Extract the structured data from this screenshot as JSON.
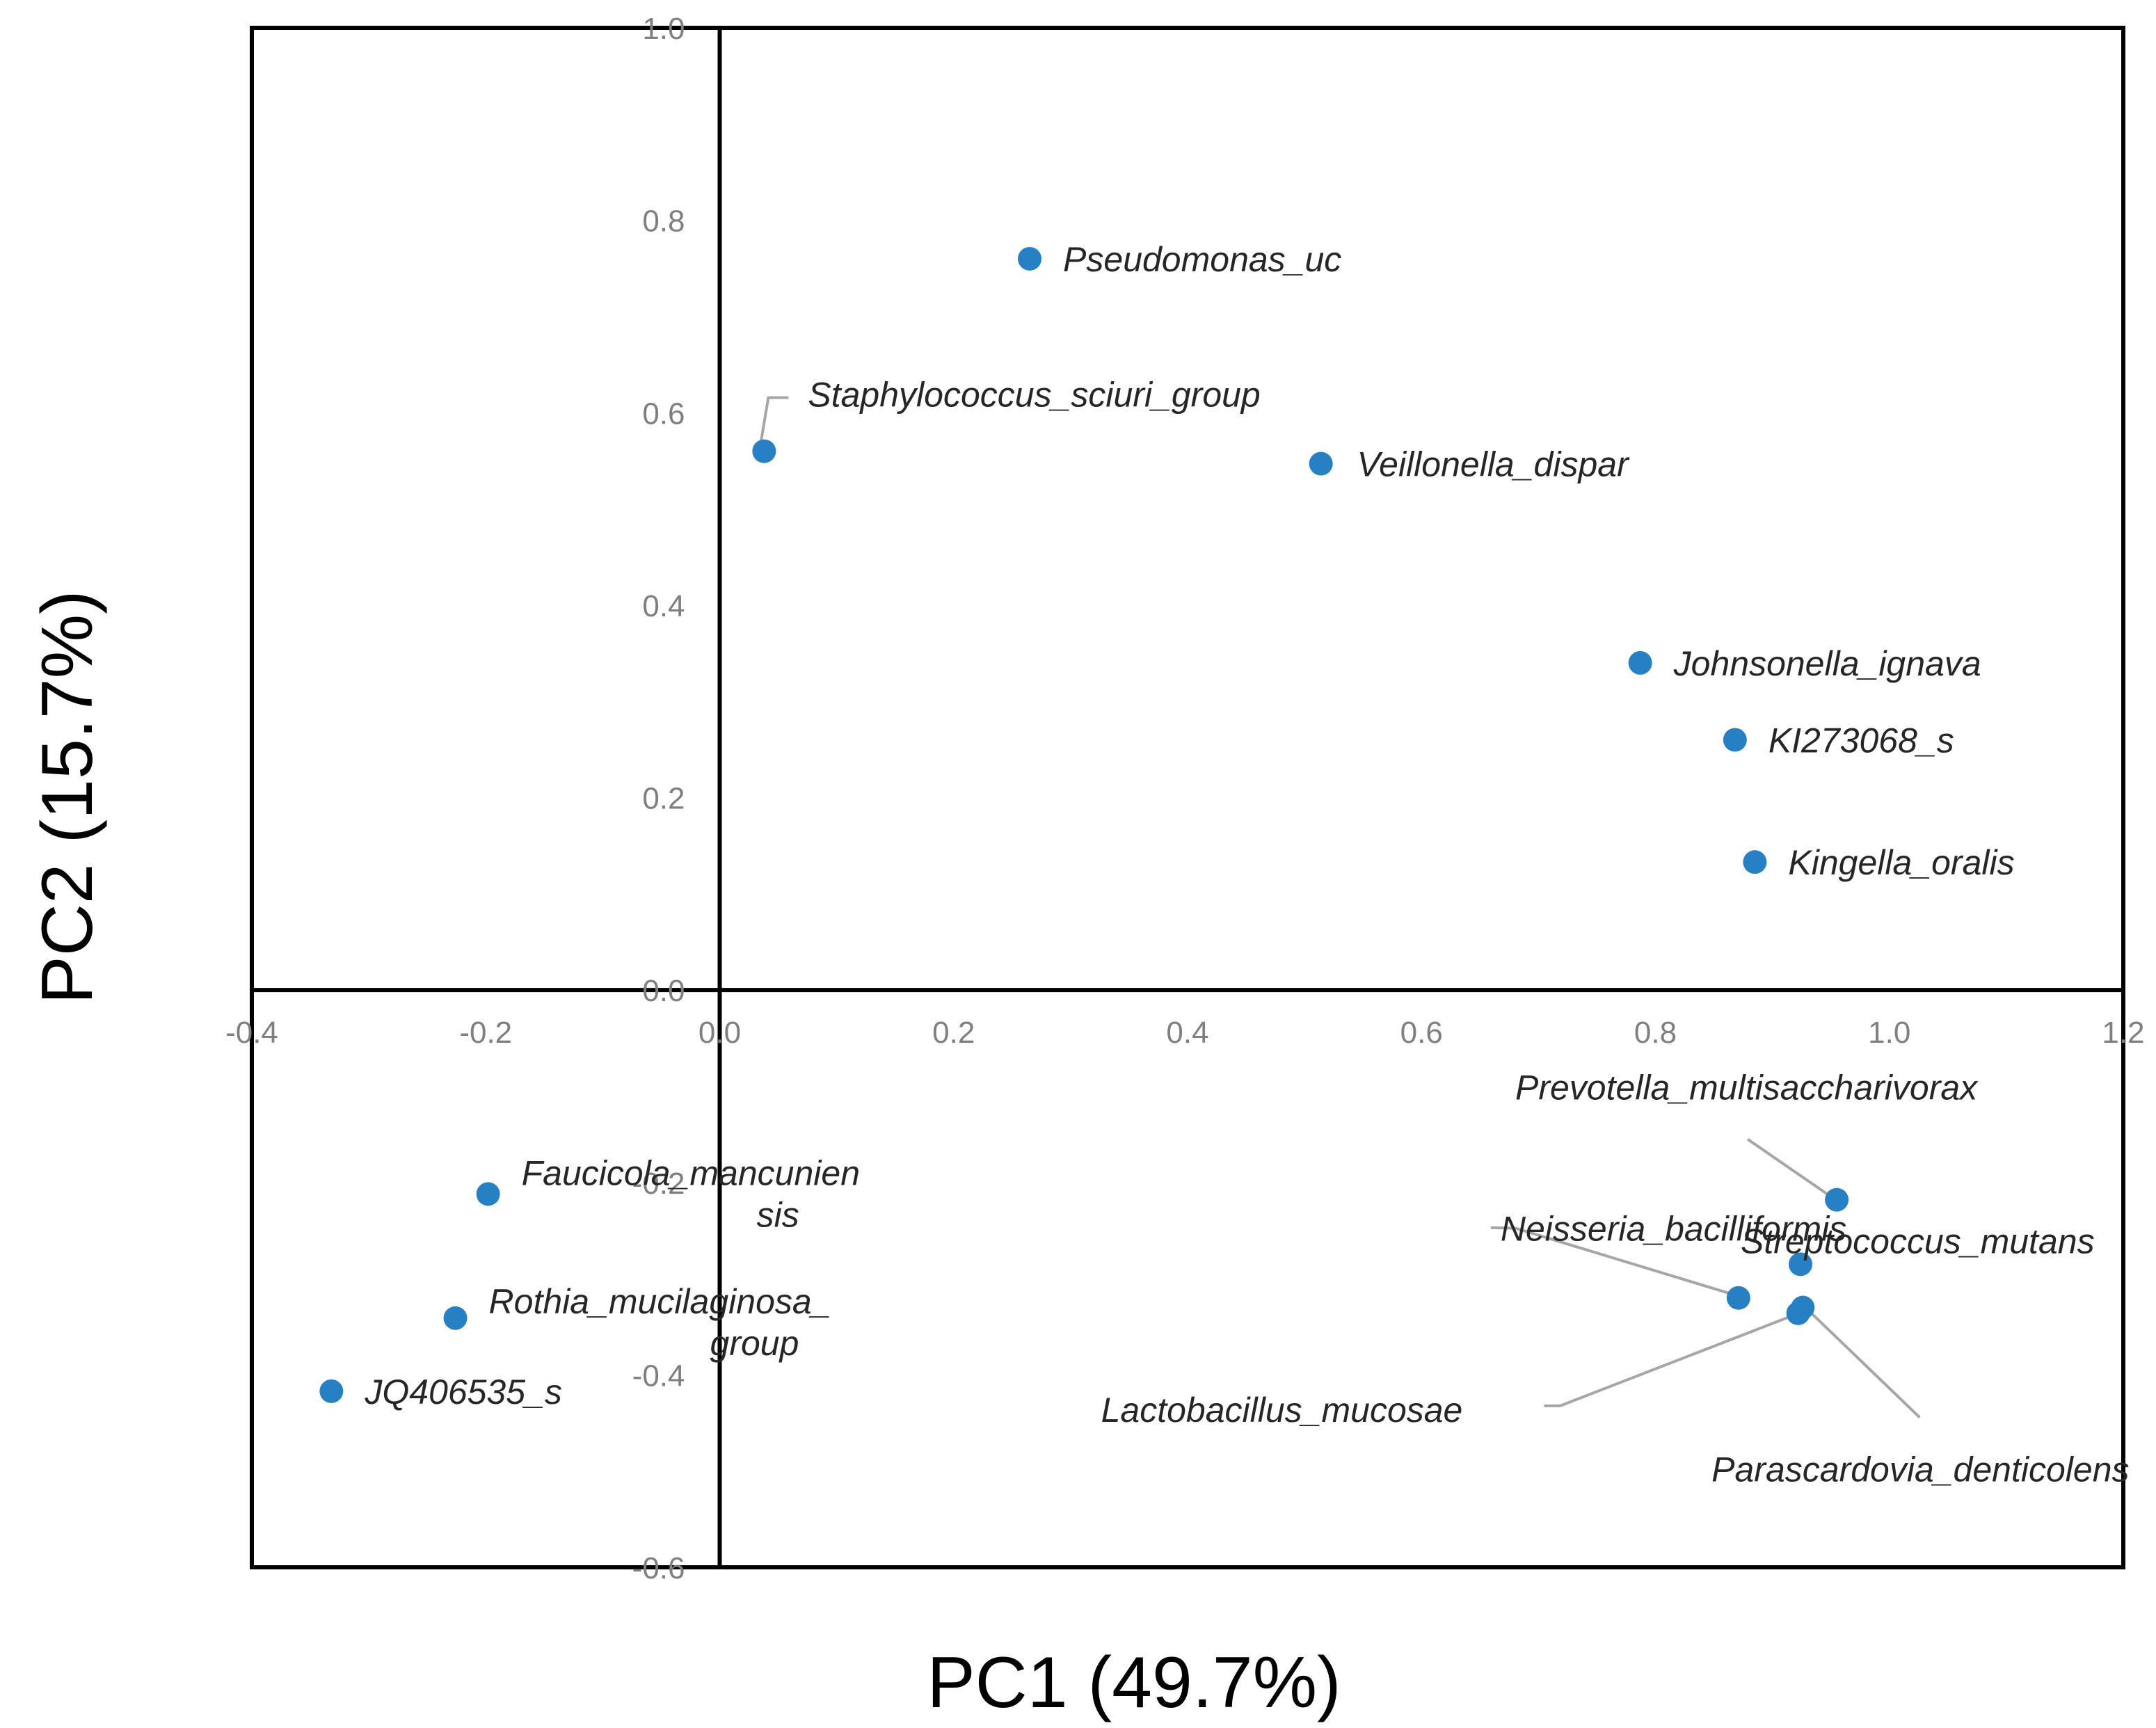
{
  "chart_data": {
    "type": "scatter",
    "title": "",
    "xlabel": "PC1 (49.7%)",
    "ylabel": "PC2 (15.7%)",
    "xlim": [
      -0.4,
      1.2
    ],
    "ylim": [
      -0.6,
      1.0
    ],
    "grid": false,
    "legend": "none",
    "x_ticks": [
      "-0.4",
      "-0.2",
      "0.0",
      "0.2",
      "0.4",
      "0.6",
      "0.8",
      "1.0",
      "1.2"
    ],
    "y_ticks": [
      "1.0",
      "0.8",
      "0.6",
      "0.4",
      "0.2",
      "0.0",
      "-0.2",
      "-0.4",
      "-0.6"
    ],
    "point_color": "#2880C4",
    "leader_color": "#a6a6a6",
    "points": [
      {
        "name": "Pseudomonas_uc",
        "x": 0.265,
        "y": 0.76
      },
      {
        "name": "Staphylococcus_sciuri_group",
        "x": 0.038,
        "y": 0.56
      },
      {
        "name": "Veillonella_dispar",
        "x": 0.514,
        "y": 0.547
      },
      {
        "name": "Johnsonella_ignava",
        "x": 0.787,
        "y": 0.34
      },
      {
        "name": "KI273068_s",
        "x": 0.868,
        "y": 0.26
      },
      {
        "name": "Kingella_oralis",
        "x": 0.885,
        "y": 0.133
      },
      {
        "name": "Prevotella_multisaccharivorax",
        "x": 0.955,
        "y": -0.218
      },
      {
        "name": "Streptococcus_mutans",
        "x": 0.924,
        "y": -0.285
      },
      {
        "name": "Neisseria_bacilliformis",
        "x": 0.871,
        "y": -0.32
      },
      {
        "name": "Lactobacillus_mucosae",
        "x": 0.922,
        "y": -0.336
      },
      {
        "name": "Parascardovia_denticolens",
        "x": 0.926,
        "y": -0.33
      },
      {
        "name": "Faucicola_mancuniensis",
        "x": -0.198,
        "y": -0.212
      },
      {
        "name": "Rothia_mucilaginosa_group",
        "x": -0.226,
        "y": -0.341
      },
      {
        "name": "JQ406535_s",
        "x": -0.332,
        "y": -0.417
      }
    ],
    "labels": {
      "Pseudomonas_uc": [
        "Pseudomonas_uc"
      ],
      "Staphylococcus_sciuri_group": [
        "Staphylococcus_sciuri_group"
      ],
      "Veillonella_dispar": [
        "Veillonella_dispar"
      ],
      "Johnsonella_ignava": [
        "Johnsonella_ignava"
      ],
      "KI273068_s": [
        "KI273068_s"
      ],
      "Kingella_oralis": [
        "Kingella_oralis"
      ],
      "Prevotella_multisaccharivorax": [
        "Prevotella_multisaccharivorax"
      ],
      "Streptococcus_mutans": [
        "Streptococcus_mutans"
      ],
      "Neisseria_bacilliformis": [
        "Neisseria_bacilliformis"
      ],
      "Lactobacillus_mucosae": [
        "Lactobacillus_mucosae"
      ],
      "Parascardovia_denticolens": [
        "Parascardovia_denticolens"
      ],
      "Faucicola_mancuniensis": [
        "Faucicola_mancunien",
        "sis"
      ],
      "Rothia_mucilaginosa_group": [
        "Rothia_mucilaginosa_",
        "group"
      ],
      "JQ406535_s": [
        "JQ406535_s"
      ]
    }
  }
}
